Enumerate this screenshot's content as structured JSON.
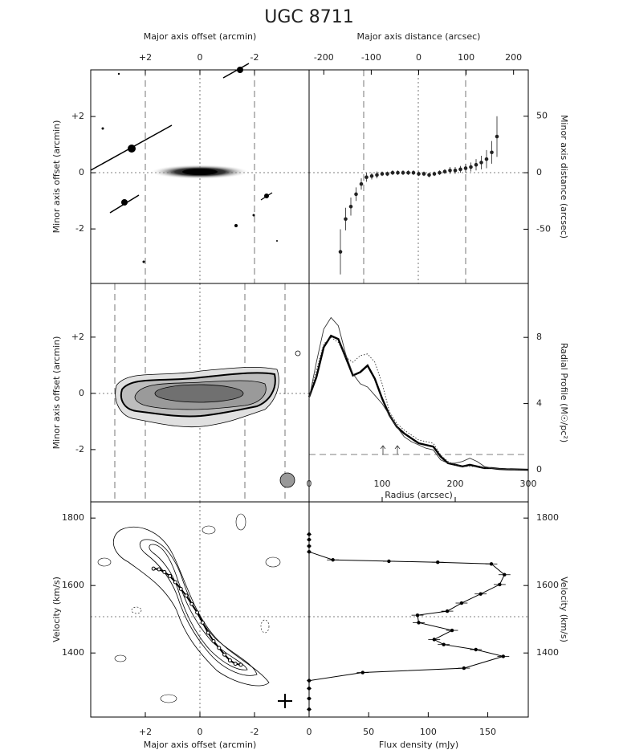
{
  "title": "UGC 8711",
  "chart_data": [
    {
      "type": "image",
      "xlabel": "Major axis offset (arcmin)",
      "ylabel": "Minor axis offset (arcmin)",
      "xlim": [
        4,
        -4
      ],
      "ylim": [
        -3.94,
        3.66
      ],
      "xticks": [
        {
          "value": 2,
          "label": "+2"
        },
        0,
        -2
      ],
      "yticks": [
        {
          "value": 2,
          "label": "+2"
        },
        0,
        -2
      ]
    },
    {
      "type": "errorbar",
      "xlabel": "Major axis distance (arcsec)",
      "ylabel": "Minor axis distance (arcsec)",
      "xlim": [
        -231,
        231
      ],
      "ylim": [
        -98,
        91
      ],
      "xticks": [
        -200,
        -100,
        0,
        100,
        200
      ],
      "yticks": [
        -50,
        0,
        50
      ],
      "color": "#222222",
      "x": [
        -165,
        -154,
        -143,
        -132,
        -121,
        -110,
        -99,
        -88,
        -77,
        -66,
        -55,
        -44,
        -33,
        -22,
        -11,
        0,
        11,
        22,
        33,
        44,
        55,
        66,
        77,
        88,
        99,
        110,
        121,
        132,
        143,
        154,
        165
      ],
      "values": [
        -70,
        -41,
        -30,
        -19,
        -10,
        -4,
        -3,
        -2,
        -1,
        -1,
        0,
        0,
        0,
        0,
        0,
        -1,
        -1,
        -2,
        -1,
        0,
        1,
        2,
        2,
        3,
        4,
        5,
        7,
        9,
        12,
        18,
        32
      ],
      "errors": [
        20,
        10,
        8,
        6,
        5,
        4,
        3,
        3,
        2,
        2,
        2,
        2,
        2,
        2,
        2,
        2,
        2,
        2,
        2,
        2,
        2,
        3,
        3,
        3,
        4,
        4,
        5,
        6,
        8,
        10,
        18
      ]
    },
    {
      "type": "contour",
      "ylabel": "Minor axis offset (arcmin)",
      "ylim": [
        -3.86,
        3.91
      ],
      "yticks": [
        {
          "value": 2,
          "label": "+2"
        },
        0,
        -2
      ]
    },
    {
      "type": "line",
      "xlabel": "Radius (arcsec)",
      "ylabel": "Radial Profile (M☉/pc²)",
      "xlim": [
        0,
        300
      ],
      "ylim": [
        -1.94,
        11.26
      ],
      "xticks": [
        0,
        100,
        200,
        300
      ],
      "yticks": [
        0,
        4,
        8
      ],
      "x": [
        0,
        10,
        20,
        30,
        40,
        50,
        60,
        70,
        80,
        90,
        100,
        110,
        120,
        130,
        140,
        150,
        160,
        170,
        180,
        190,
        200,
        210,
        220,
        230,
        240,
        250,
        260,
        270,
        280,
        290,
        300
      ],
      "series": [
        {
          "color": "#000000",
          "style": "thick",
          "values": [
            4.4,
            5.6,
            7.4,
            8.1,
            7.9,
            6.8,
            5.7,
            5.9,
            6.3,
            5.5,
            4.3,
            3.3,
            2.6,
            2.2,
            1.9,
            1.6,
            1.5,
            1.4,
            0.8,
            0.4,
            0.3,
            0.2,
            0.3,
            0.2,
            0.1,
            0.1,
            0.05,
            0.03,
            0.02,
            0.01,
            0
          ]
        },
        {
          "color": "#333333",
          "style": "thin",
          "values": [
            4.3,
            6.5,
            8.5,
            9.2,
            8.7,
            7.0,
            5.8,
            5.2,
            5.0,
            4.5,
            4.0,
            3.3,
            2.6,
            2.0,
            1.7,
            1.5,
            1.3,
            1.2,
            0.6,
            0.4,
            0.4,
            0.5,
            0.7,
            0.5,
            0.2,
            0.1,
            0.05,
            0.03,
            0.02,
            0.01,
            0
          ]
        },
        {
          "color": "#333333",
          "style": "dotted",
          "values": [
            4.4,
            6.0,
            7.6,
            8.0,
            7.7,
            6.8,
            6.5,
            6.9,
            7.0,
            6.5,
            5.2,
            3.5,
            2.8,
            2.4,
            2.1,
            1.8,
            1.7,
            1.6,
            0.9,
            0.5,
            0.3,
            0.2,
            0.2,
            0.2,
            0.1,
            0.1,
            0.05,
            0.03,
            0.02,
            0.01,
            0
          ]
        }
      ]
    },
    {
      "type": "pv",
      "xlabel": "Major axis offset (arcmin)",
      "ylabel": "Velocity (km/s)",
      "xlim": [
        4,
        -4
      ],
      "ylim": [
        1210,
        1848
      ],
      "xticks": [
        {
          "value": 2,
          "label": "+2"
        },
        0,
        -2
      ],
      "yticks": [
        1400,
        1600,
        1800
      ],
      "color": "#000000",
      "x": [
        1.7,
        1.5,
        1.3,
        1.1,
        0.9,
        0.7,
        0.5,
        0.3,
        0.1,
        -0.1,
        -0.3,
        -0.5,
        -0.7,
        -0.9,
        -1.1,
        -1.3,
        -1.5
      ],
      "values": [
        1650,
        1648,
        1640,
        1628,
        1610,
        1590,
        1570,
        1545,
        1520,
        1490,
        1460,
        1435,
        1415,
        1395,
        1378,
        1368,
        1365
      ]
    },
    {
      "type": "profile",
      "xlabel": "Flux density (mJy)",
      "ylabel": "Velocity (km/s)",
      "xlim": [
        0,
        184
      ],
      "ylim": [
        1210,
        1848
      ],
      "xticks": [
        0,
        50,
        100,
        150
      ],
      "yticks": [
        1400,
        1600,
        1800
      ],
      "color": "#000000",
      "velocities": [
        1752,
        1736,
        1717,
        1700,
        1676,
        1672,
        1669,
        1664,
        1632,
        1603,
        1575,
        1548,
        1524,
        1512,
        1490,
        1467,
        1440,
        1425,
        1410,
        1390,
        1355,
        1342,
        1318,
        1295,
        1265,
        1233
      ],
      "values": [
        0,
        0,
        0,
        0,
        20,
        67,
        108,
        153,
        164,
        160,
        144,
        128,
        116,
        91,
        92,
        120,
        105,
        113,
        140,
        163,
        130,
        45,
        0,
        0,
        0,
        0
      ],
      "errors": [
        2,
        2,
        2,
        2,
        5,
        5,
        5,
        5,
        5,
        5,
        5,
        5,
        5,
        5,
        5,
        5,
        5,
        5,
        5,
        5,
        5,
        5,
        2,
        2,
        2,
        2
      ]
    }
  ]
}
